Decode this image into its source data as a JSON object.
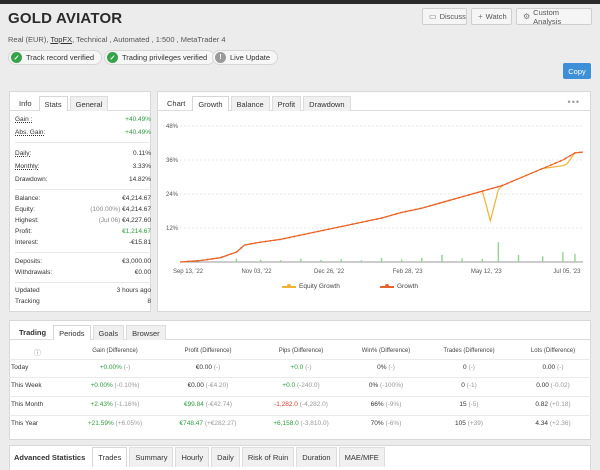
{
  "header": {
    "title": "GOLD AVIATOR",
    "subtitle_pre": "Real (EUR),",
    "broker": "TopFX",
    "subtitle_post": ", Technical , Automated , 1:500 , MetaTrader 4",
    "buttons": {
      "discuss": "Discuss",
      "watch": "Watch",
      "custom": "Custom Analysis"
    },
    "badges": [
      "Track record verified",
      "Trading privileges verified",
      "Live Update"
    ],
    "copy": "Copy"
  },
  "stats": {
    "tabs": [
      "Info",
      "Stats",
      "General"
    ],
    "rows": [
      {
        "k": "Gain :",
        "v": "+40.49%"
      },
      {
        "k": "Abs. Gain:",
        "v": "+40.49%"
      },
      {
        "k": "Daily:",
        "v": "0.11%"
      },
      {
        "k": "Monthly:",
        "v": "3.33%"
      },
      {
        "k": "Drawdown:",
        "v": "14.82%"
      },
      {
        "k": "Balance:",
        "v": "€4,214.67"
      },
      {
        "k": "Equity:",
        "pre": "(100.00%)",
        "v": "€4,214.67"
      },
      {
        "k": "Highest:",
        "pre": "(Jul 06)",
        "v": "€4,227.60"
      },
      {
        "k": "Profit:",
        "v": "€1,214.67"
      },
      {
        "k": "Interest:",
        "v": "-€15.81"
      },
      {
        "k": "Deposits:",
        "v": "€3,000.00"
      },
      {
        "k": "Withdrawals:",
        "v": "€0.00"
      },
      {
        "k": "Updated",
        "v": "3 hours ago"
      },
      {
        "k": "Tracking",
        "v": "8"
      }
    ]
  },
  "chart_panel": {
    "label": "Chart",
    "tabs": [
      "Growth",
      "Balance",
      "Profit",
      "Drawdown"
    ],
    "menu": "•••"
  },
  "chart_data": {
    "type": "line",
    "x_labels": [
      "Sep 13, '22",
      "Nov 03, '22",
      "Dec 26, '22",
      "Feb 28, '23",
      "May 12, '23",
      "Jul 05, '23"
    ],
    "y_ticks": [
      "48%",
      "36%",
      "24%",
      "12%",
      "0%"
    ],
    "ylim": [
      0,
      48
    ],
    "legend": [
      "Equity Growth",
      "Growth"
    ],
    "colors": {
      "growth": "#e8622c",
      "equity": "#f2b233",
      "bars": "#90d490"
    },
    "series": [
      {
        "name": "Growth",
        "points": [
          [
            0,
            0
          ],
          [
            0.05,
            0.5
          ],
          [
            0.1,
            1.5
          ],
          [
            0.14,
            3.5
          ],
          [
            0.16,
            6
          ],
          [
            0.2,
            7
          ],
          [
            0.25,
            8
          ],
          [
            0.3,
            9.5
          ],
          [
            0.35,
            11
          ],
          [
            0.4,
            12.5
          ],
          [
            0.45,
            14
          ],
          [
            0.5,
            15.5
          ],
          [
            0.55,
            17.5
          ],
          [
            0.6,
            19
          ],
          [
            0.65,
            21
          ],
          [
            0.7,
            23
          ],
          [
            0.75,
            25
          ],
          [
            0.8,
            27
          ],
          [
            0.85,
            30
          ],
          [
            0.9,
            33
          ],
          [
            0.95,
            36
          ],
          [
            0.98,
            38.5
          ],
          [
            1,
            38.8
          ]
        ]
      },
      {
        "name": "Equity Growth",
        "points": [
          [
            0,
            0
          ],
          [
            0.05,
            0.5
          ],
          [
            0.1,
            1.5
          ],
          [
            0.14,
            3.5
          ],
          [
            0.16,
            6
          ],
          [
            0.2,
            7
          ],
          [
            0.25,
            8
          ],
          [
            0.3,
            9.5
          ],
          [
            0.35,
            11
          ],
          [
            0.4,
            12.5
          ],
          [
            0.45,
            14
          ],
          [
            0.5,
            15.5
          ],
          [
            0.55,
            17.5
          ],
          [
            0.6,
            19
          ],
          [
            0.65,
            21
          ],
          [
            0.7,
            23
          ],
          [
            0.75,
            25
          ],
          [
            0.76,
            20
          ],
          [
            0.77,
            14.5
          ],
          [
            0.78,
            20
          ],
          [
            0.79,
            25.5
          ],
          [
            0.8,
            27
          ],
          [
            0.85,
            30
          ],
          [
            0.9,
            33
          ],
          [
            0.95,
            34
          ],
          [
            0.96,
            34.6
          ],
          [
            0.98,
            38.5
          ],
          [
            1,
            38.8
          ]
        ]
      }
    ],
    "bars": [
      [
        0.14,
        1.2
      ],
      [
        0.2,
        0.8
      ],
      [
        0.25,
        0.6
      ],
      [
        0.3,
        1.2
      ],
      [
        0.35,
        0.7
      ],
      [
        0.4,
        1
      ],
      [
        0.45,
        0.6
      ],
      [
        0.5,
        1.4
      ],
      [
        0.55,
        0.9
      ],
      [
        0.6,
        1.5
      ],
      [
        0.65,
        2.5
      ],
      [
        0.7,
        1.3
      ],
      [
        0.75,
        1.1
      ],
      [
        0.79,
        7
      ],
      [
        0.84,
        2.5
      ],
      [
        0.9,
        2
      ],
      [
        0.95,
        3.5
      ],
      [
        0.98,
        2.8
      ]
    ]
  },
  "trading": {
    "tabs": [
      "Trading",
      "Periods",
      "Goals",
      "Browser"
    ],
    "headers": [
      "Gain (Difference)",
      "Profit (Difference)",
      "Pips (Difference)",
      "Win% (Difference)",
      "Trades (Difference)",
      "Lots (Difference)"
    ],
    "rows": [
      {
        "label": "Today",
        "cells": [
          [
            "+0.00%",
            "(-)",
            "g"
          ],
          [
            "€0.00",
            "(-)",
            ""
          ],
          [
            "+0.0",
            "(-)",
            "g"
          ],
          [
            "0%",
            "(-)",
            ""
          ],
          [
            "0",
            "(-)",
            ""
          ],
          [
            "0.00",
            "(-)",
            ""
          ]
        ]
      },
      {
        "label": "This Week",
        "cells": [
          [
            "+0.00%",
            "(-0.10%)",
            "g"
          ],
          [
            "€0.00",
            "(-€4.20)",
            ""
          ],
          [
            "+0.0",
            "(-240.0)",
            "g"
          ],
          [
            "0%",
            "(-100%)",
            ""
          ],
          [
            "0",
            "(-1)",
            ""
          ],
          [
            "0.00",
            "(-0.02)",
            ""
          ]
        ]
      },
      {
        "label": "This Month",
        "cells": [
          [
            "+2.43%",
            "(-1.16%)",
            "g"
          ],
          [
            "€99.84",
            "(-€42.74)",
            "g"
          ],
          [
            "-1,282.0",
            "(-4,282.0)",
            "r"
          ],
          [
            "66%",
            "(-9%)",
            ""
          ],
          [
            "15",
            "(-5)",
            ""
          ],
          [
            "0.82",
            "(+0.18)",
            ""
          ]
        ]
      },
      {
        "label": "This Year",
        "cells": [
          [
            "+21.59%",
            "(+6.05%)",
            "g"
          ],
          [
            "€748.47",
            "(+€282.27)",
            "g"
          ],
          [
            "+6,158.0",
            "(-3,810.0)",
            "g"
          ],
          [
            "70%",
            "(-6%)",
            ""
          ],
          [
            "105",
            "(+39)",
            ""
          ],
          [
            "4.34",
            "(+2.36)",
            ""
          ]
        ]
      }
    ],
    "info_icon": "ⓘ"
  },
  "bottom_tabs": [
    "Advanced Statistics",
    "Trades",
    "Summary",
    "Hourly",
    "Daily",
    "Risk of Ruin",
    "Duration",
    "MAE/MFE"
  ]
}
